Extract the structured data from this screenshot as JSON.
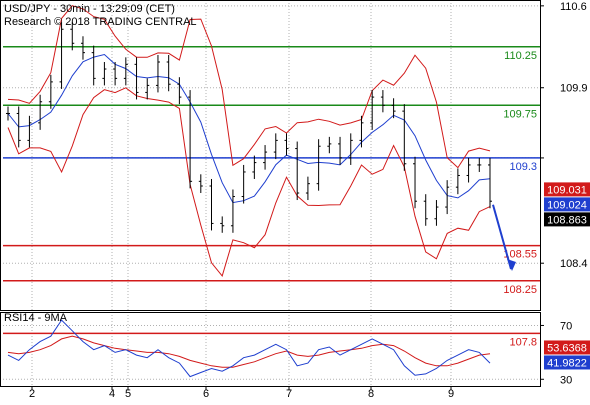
{
  "chart_data": {
    "type": "line",
    "title": "USD/JPY - 30min - 13:29:09 (CET)",
    "subtitle": "Research © 2018 TRADING CENTRAL",
    "x_tick_labels": [
      "2",
      "4",
      "5",
      "6",
      "7",
      "8",
      "9"
    ],
    "price_panel": {
      "ylim": [
        108.0,
        110.65
      ],
      "y_ticks": [
        110.6,
        109.9,
        109.3,
        108.4
      ],
      "y_tick_labels": [
        "110.6",
        "109.9",
        "",
        "108.4"
      ],
      "levels": [
        {
          "value": 110.25,
          "label": "110.25",
          "color": "#1a8a1a"
        },
        {
          "value": 109.75,
          "label": "109.75",
          "color": "#1a8a1a"
        },
        {
          "value": 109.3,
          "label": "109.3",
          "color": "#1f3fcf"
        },
        {
          "value": 108.55,
          "label": "108.55",
          "color": "#d21a1a"
        },
        {
          "value": 108.25,
          "label": "108.25",
          "color": "#d21a1a"
        },
        {
          "value": 107.8,
          "label": "107.8",
          "color": "#d21a1a"
        }
      ],
      "badges": [
        {
          "value": 109.031,
          "label": "109.031",
          "bg": "#d21a1a"
        },
        {
          "value": 109.024,
          "label": "109.024",
          "bg": "#1f3fcf"
        },
        {
          "value": 108.863,
          "label": "108.863",
          "bg": "#000000"
        }
      ],
      "price_series": [
        109.68,
        109.45,
        109.6,
        109.78,
        109.95,
        110.4,
        110.28,
        110.2,
        109.98,
        110.06,
        109.98,
        110.1,
        109.86,
        109.92,
        110.12,
        109.93,
        109.82,
        109.1,
        109.06,
        108.74,
        108.72,
        108.97,
        109.18,
        109.26,
        109.35,
        109.45,
        109.38,
        109.0,
        109.08,
        109.4,
        109.42,
        109.3,
        109.45,
        109.6,
        109.82,
        109.75,
        109.7,
        109.25,
        108.93,
        108.78,
        108.88,
        109.05,
        109.15,
        109.24,
        109.24,
        108.93
      ],
      "outlook_arrow": {
        "from": 108.9,
        "to": 108.35
      }
    },
    "rsi_panel": {
      "title": "RSI14 - 9MA",
      "ylim": [
        25,
        80
      ],
      "y_ticks": [
        70,
        30
      ],
      "y_tick_labels": [
        "70",
        "30"
      ],
      "badges": [
        {
          "value": 53.6368,
          "label": "53.6368",
          "bg": "#d21a1a"
        },
        {
          "value": 41.9822,
          "label": "41.9822",
          "bg": "#1f3fcf"
        }
      ],
      "rsi_series": [
        48,
        44,
        52,
        58,
        62,
        74,
        66,
        58,
        52,
        55,
        50,
        52,
        48,
        46,
        52,
        46,
        42,
        32,
        35,
        38,
        36,
        40,
        46,
        48,
        52,
        56,
        52,
        40,
        42,
        52,
        54,
        48,
        52,
        56,
        60,
        56,
        52,
        40,
        33,
        34,
        38,
        44,
        48,
        52,
        50,
        42
      ],
      "ma_series": [
        50,
        49,
        50,
        52,
        55,
        60,
        62,
        60,
        57,
        55,
        53,
        52,
        51,
        50,
        50,
        49,
        47,
        44,
        42,
        40,
        39,
        39,
        41,
        43,
        46,
        49,
        51,
        48,
        47,
        48,
        50,
        51,
        52,
        53,
        55,
        56,
        55,
        51,
        46,
        42,
        40,
        40,
        42,
        45,
        48,
        49
      ]
    },
    "colors": {
      "price": "#000000",
      "bollinger": "#d21a1a",
      "moving_average": "#1f3fcf",
      "rsi": "#1f3fcf",
      "rsi_ma": "#d21a1a",
      "grid": "#b0b0b0",
      "arrow": "#1f3fcf"
    },
    "grid": true
  }
}
